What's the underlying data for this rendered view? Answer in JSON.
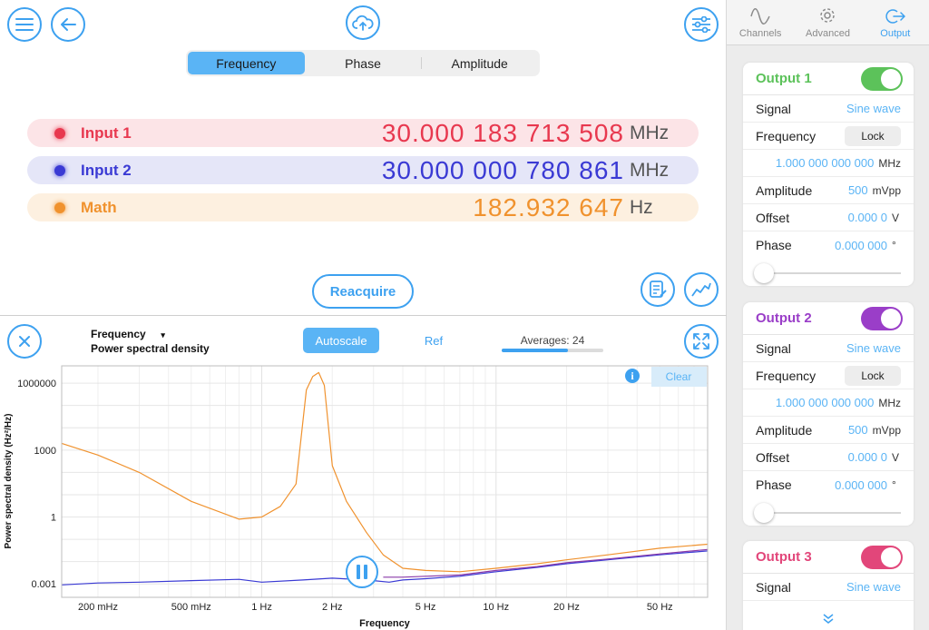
{
  "modes": [
    "Frequency",
    "Phase",
    "Amplitude"
  ],
  "active_mode": "Frequency",
  "measurements": [
    {
      "name": "Input 1",
      "value": "30.000 183 713 508",
      "unit": "MHz",
      "color": "#e8384f",
      "bg": "#fce4e7"
    },
    {
      "name": "Input 2",
      "value": "30.000 000 780 861",
      "unit": "MHz",
      "color": "#3a3ad4",
      "bg": "#e5e6f8"
    },
    {
      "name": "Math",
      "value": "182.932 647",
      "unit": "Hz",
      "color": "#f0922e",
      "bg": "#fdf0e0"
    }
  ],
  "reacquire_label": "Reacquire",
  "plot": {
    "selector_line1": "Frequency",
    "selector_arrow": "▾",
    "selector_line2": "Power spectral density",
    "autoscale_label": "Autoscale",
    "ref_label": "Ref",
    "averages_label": "Averages: 24",
    "averages_fraction": 0.65,
    "clear_label": "Clear",
    "info_glyph": "i"
  },
  "chart_data": {
    "type": "line",
    "xlabel": "Frequency",
    "ylabel": "Power spectral density (Hz²/Hz)",
    "x_scale": "log",
    "y_scale": "log",
    "xlim": [
      0.14,
      80
    ],
    "ylim": [
      0.00025,
      6000000
    ],
    "x_ticks": [
      {
        "v": 0.2,
        "label": "200 mHz"
      },
      {
        "v": 0.5,
        "label": "500 mHz"
      },
      {
        "v": 1,
        "label": "1 Hz"
      },
      {
        "v": 2,
        "label": "2 Hz"
      },
      {
        "v": 5,
        "label": "5 Hz"
      },
      {
        "v": 10,
        "label": "10 Hz"
      },
      {
        "v": 20,
        "label": "20 Hz"
      },
      {
        "v": 50,
        "label": "50 Hz"
      }
    ],
    "y_ticks": [
      {
        "v": 0.001,
        "label": "0.001"
      },
      {
        "v": 1,
        "label": "1"
      },
      {
        "v": 1000,
        "label": "1000"
      },
      {
        "v": 1000000,
        "label": "1000000"
      }
    ],
    "grid": true,
    "series": [
      {
        "color": "#f0922e",
        "x": [
          0.14,
          0.2,
          0.3,
          0.5,
          0.8,
          1.0,
          1.2,
          1.4,
          1.55,
          1.65,
          1.75,
          1.85,
          2.0,
          2.3,
          2.8,
          3.3,
          4.0,
          5.0,
          7.0,
          10,
          15,
          20,
          30,
          50,
          80
        ],
        "y": [
          2000,
          600,
          100,
          5,
          0.8,
          1,
          3,
          30,
          500000,
          2000000,
          3000000,
          800000,
          200,
          5,
          0.2,
          0.02,
          0.005,
          0.004,
          0.0035,
          0.005,
          0.008,
          0.012,
          0.02,
          0.04,
          0.06
        ]
      },
      {
        "color": "#3a3ad4",
        "x": [
          0.14,
          0.2,
          0.3,
          0.5,
          0.8,
          1.0,
          1.5,
          2.0,
          2.5,
          3.0,
          3.5,
          4.0,
          5.0,
          7.0,
          10,
          15,
          20,
          30,
          50,
          80
        ],
        "y": [
          0.0009,
          0.0011,
          0.0012,
          0.0014,
          0.0016,
          0.0012,
          0.0015,
          0.0018,
          0.0016,
          0.0014,
          0.0012,
          0.0015,
          0.0017,
          0.0022,
          0.0035,
          0.0055,
          0.008,
          0.012,
          0.02,
          0.03
        ]
      },
      {
        "color": "#8a3aa8",
        "x": [
          3.3,
          4.0,
          5.0,
          7.0,
          10,
          15,
          20,
          30,
          50,
          80
        ],
        "y": [
          0.002,
          0.002,
          0.0022,
          0.0025,
          0.004,
          0.006,
          0.009,
          0.013,
          0.022,
          0.035
        ]
      }
    ]
  },
  "side": {
    "tabs": [
      {
        "label": "Channels",
        "icon": "wave-icon"
      },
      {
        "label": "Advanced",
        "icon": "gear-icon"
      },
      {
        "label": "Output",
        "icon": "output-icon"
      }
    ],
    "active_tab": "Output",
    "outputs": [
      {
        "title": "Output 1",
        "color": "#5cc25a",
        "signal": "Sine wave",
        "lock": "Lock",
        "frequency": "1.000 000 000 000",
        "freq_unit": "MHz",
        "amplitude": "500",
        "amp_unit": "mVpp",
        "offset": "0.000 0",
        "offset_unit": "V",
        "phase": "0.000 000",
        "phase_unit": "°"
      },
      {
        "title": "Output 2",
        "color": "#9a3ec8",
        "signal": "Sine wave",
        "lock": "Lock",
        "frequency": "1.000 000 000 000",
        "freq_unit": "MHz",
        "amplitude": "500",
        "amp_unit": "mVpp",
        "offset": "0.000 0",
        "offset_unit": "V",
        "phase": "0.000 000",
        "phase_unit": "°"
      },
      {
        "title": "Output 3",
        "color": "#e2467a",
        "signal": "Sine wave"
      }
    ],
    "labels": {
      "signal": "Signal",
      "frequency": "Frequency",
      "amplitude": "Amplitude",
      "offset": "Offset",
      "phase": "Phase"
    }
  }
}
